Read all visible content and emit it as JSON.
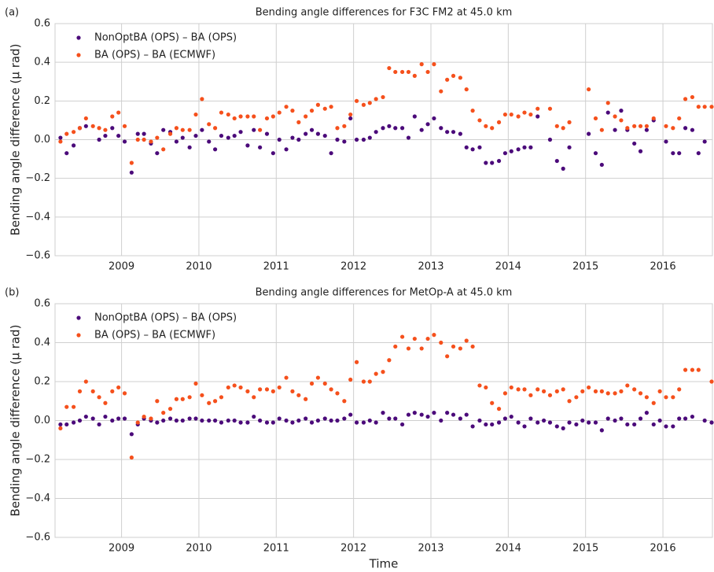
{
  "chart_data": [
    {
      "type": "scatter",
      "panel": "(a)",
      "title": "Bending angle differences for F3C FM2 at 45.0 km",
      "ylabel": "Bending angle difference (μ rad)",
      "x": [
        2008.21,
        2008.29,
        2008.38,
        2008.46,
        2008.54,
        2008.63,
        2008.71,
        2008.79,
        2008.88,
        2008.96,
        2009.04,
        2009.13,
        2009.21,
        2009.29,
        2009.38,
        2009.46,
        2009.54,
        2009.63,
        2009.71,
        2009.79,
        2009.88,
        2009.96,
        2010.04,
        2010.13,
        2010.21,
        2010.29,
        2010.38,
        2010.46,
        2010.54,
        2010.63,
        2010.71,
        2010.79,
        2010.88,
        2010.96,
        2011.04,
        2011.13,
        2011.21,
        2011.29,
        2011.38,
        2011.46,
        2011.54,
        2011.63,
        2011.71,
        2011.79,
        2011.88,
        2011.96,
        2012.04,
        2012.13,
        2012.21,
        2012.29,
        2012.38,
        2012.46,
        2012.54,
        2012.63,
        2012.71,
        2012.79,
        2012.88,
        2012.96,
        2013.04,
        2013.13,
        2013.21,
        2013.29,
        2013.38,
        2013.46,
        2013.54,
        2013.63,
        2013.71,
        2013.79,
        2013.88,
        2013.96,
        2014.04,
        2014.13,
        2014.21,
        2014.29,
        2014.38,
        2014.46,
        2014.54,
        2014.63,
        2014.71,
        2014.79,
        2014.88,
        2014.96,
        2015.04,
        2015.13,
        2015.21,
        2015.29,
        2015.38,
        2015.46,
        2015.54,
        2015.63,
        2015.71,
        2015.79,
        2015.88,
        2015.96,
        2016.04,
        2016.13,
        2016.21,
        2016.29,
        2016.38,
        2016.46,
        2016.54,
        2016.63
      ],
      "series": [
        {
          "name": "NonOptBA (OPS) – BA (OPS)",
          "color": "#4b0a7a",
          "values": [
            0.01,
            -0.07,
            -0.03,
            0.06,
            0.07,
            null,
            0.0,
            0.02,
            0.06,
            0.02,
            -0.01,
            -0.17,
            0.03,
            0.03,
            -0.02,
            -0.07,
            0.05,
            0.04,
            -0.01,
            0.01,
            -0.04,
            0.02,
            0.05,
            -0.01,
            -0.05,
            0.02,
            0.01,
            0.02,
            0.04,
            -0.03,
            0.05,
            -0.04,
            0.03,
            -0.07,
            0.0,
            -0.05,
            0.01,
            0.0,
            0.03,
            0.05,
            0.03,
            0.02,
            -0.07,
            0.0,
            -0.01,
            0.11,
            0.0,
            0.0,
            0.01,
            0.04,
            0.06,
            0.07,
            0.06,
            0.06,
            0.01,
            0.12,
            0.05,
            0.08,
            0.11,
            0.06,
            0.04,
            0.04,
            0.03,
            -0.04,
            -0.05,
            -0.04,
            -0.12,
            -0.12,
            -0.11,
            -0.07,
            -0.06,
            -0.05,
            -0.04,
            -0.04,
            0.12,
            null,
            0.0,
            -0.11,
            -0.15,
            -0.04,
            null,
            null,
            0.03,
            -0.07,
            -0.13,
            0.14,
            0.05,
            0.15,
            0.05,
            -0.02,
            -0.06,
            0.05,
            0.1,
            null,
            -0.01,
            -0.07,
            -0.07,
            0.06,
            0.05,
            -0.07,
            -0.01,
            null
          ]
        },
        {
          "name": "BA (OPS) – BA (ECMWF)",
          "color": "#f5501c",
          "values": [
            -0.01,
            0.03,
            0.04,
            0.06,
            0.11,
            0.07,
            0.06,
            0.05,
            0.12,
            0.14,
            0.07,
            -0.12,
            0.0,
            0.0,
            -0.01,
            0.01,
            -0.05,
            0.03,
            0.06,
            0.05,
            0.05,
            0.13,
            0.21,
            0.08,
            0.06,
            0.14,
            0.13,
            0.11,
            0.12,
            0.12,
            0.12,
            0.05,
            0.11,
            0.12,
            0.14,
            0.17,
            0.15,
            0.09,
            0.12,
            0.15,
            0.18,
            0.16,
            0.17,
            0.06,
            0.07,
            0.13,
            0.2,
            0.18,
            0.19,
            0.21,
            0.22,
            0.37,
            0.35,
            0.35,
            0.35,
            0.33,
            0.39,
            0.35,
            0.39,
            0.25,
            0.31,
            0.33,
            0.32,
            0.26,
            0.15,
            0.1,
            0.07,
            0.06,
            0.09,
            0.13,
            0.13,
            0.12,
            0.14,
            0.13,
            0.16,
            null,
            0.16,
            0.07,
            0.06,
            0.09,
            null,
            null,
            0.26,
            0.11,
            0.05,
            0.19,
            0.12,
            0.1,
            0.06,
            0.07,
            0.07,
            0.07,
            0.11,
            null,
            0.07,
            0.06,
            0.11,
            0.21,
            0.22,
            0.17,
            0.17,
            0.17
          ]
        }
      ],
      "xlim": [
        2008.14,
        2016.64
      ],
      "xticks": [
        2009,
        2010,
        2011,
        2012,
        2013,
        2014,
        2015,
        2016
      ],
      "ylim": [
        -0.6,
        0.6
      ],
      "yticks": [
        {
          "value": -0.6,
          "label": "−0.6"
        },
        {
          "value": -0.4,
          "label": "−0.4"
        },
        {
          "value": -0.2,
          "label": "−0.2"
        },
        {
          "value": 0,
          "label": "0.0"
        },
        0.2,
        0.4,
        0.6
      ],
      "grid": true,
      "legend": "upper left"
    },
    {
      "type": "scatter",
      "panel": "(b)",
      "title": "Bending angle differences for MetOp-A at 45.0 km",
      "ylabel": "Bending angle difference (μ rad)",
      "xlabel": "Time",
      "x": [
        2008.21,
        2008.29,
        2008.38,
        2008.46,
        2008.54,
        2008.63,
        2008.71,
        2008.79,
        2008.88,
        2008.96,
        2009.04,
        2009.13,
        2009.21,
        2009.29,
        2009.38,
        2009.46,
        2009.54,
        2009.63,
        2009.71,
        2009.79,
        2009.88,
        2009.96,
        2010.04,
        2010.13,
        2010.21,
        2010.29,
        2010.38,
        2010.46,
        2010.54,
        2010.63,
        2010.71,
        2010.79,
        2010.88,
        2010.96,
        2011.04,
        2011.13,
        2011.21,
        2011.29,
        2011.38,
        2011.46,
        2011.54,
        2011.63,
        2011.71,
        2011.79,
        2011.88,
        2011.96,
        2012.04,
        2012.13,
        2012.21,
        2012.29,
        2012.38,
        2012.46,
        2012.54,
        2012.63,
        2012.71,
        2012.79,
        2012.88,
        2012.96,
        2013.04,
        2013.13,
        2013.21,
        2013.29,
        2013.38,
        2013.46,
        2013.54,
        2013.63,
        2013.71,
        2013.79,
        2013.88,
        2013.96,
        2014.04,
        2014.13,
        2014.21,
        2014.29,
        2014.38,
        2014.46,
        2014.54,
        2014.63,
        2014.71,
        2014.79,
        2014.88,
        2014.96,
        2015.04,
        2015.13,
        2015.21,
        2015.29,
        2015.38,
        2015.46,
        2015.54,
        2015.63,
        2015.71,
        2015.79,
        2015.88,
        2015.96,
        2016.04,
        2016.13,
        2016.21,
        2016.29,
        2016.38,
        2016.46,
        2016.54,
        2016.63
      ],
      "series": [
        {
          "name": "NonOptBA (OPS) – BA (OPS)",
          "color": "#4b0a7a",
          "values": [
            -0.02,
            -0.02,
            -0.01,
            0.0,
            0.02,
            0.01,
            -0.02,
            0.02,
            0.0,
            0.01,
            0.01,
            -0.07,
            -0.02,
            0.01,
            0.0,
            -0.01,
            0.0,
            0.01,
            0.0,
            0.0,
            0.01,
            0.01,
            0.0,
            0.0,
            0.0,
            -0.01,
            0.0,
            0.0,
            -0.01,
            -0.01,
            0.02,
            0.0,
            -0.01,
            -0.01,
            0.01,
            0.0,
            -0.01,
            0.0,
            0.01,
            -0.01,
            0.0,
            0.01,
            0.0,
            0.0,
            0.01,
            0.03,
            -0.01,
            -0.01,
            0.0,
            -0.01,
            0.04,
            0.01,
            0.01,
            -0.02,
            0.03,
            0.04,
            0.03,
            0.02,
            0.04,
            0.0,
            0.04,
            0.03,
            0.01,
            0.03,
            -0.03,
            0.0,
            -0.02,
            -0.02,
            -0.01,
            0.01,
            0.02,
            -0.01,
            -0.03,
            0.01,
            -0.01,
            0.0,
            -0.01,
            -0.03,
            -0.04,
            -0.01,
            -0.02,
            0.0,
            -0.01,
            -0.01,
            -0.05,
            0.01,
            0.0,
            0.01,
            -0.02,
            -0.02,
            0.01,
            0.04,
            -0.02,
            0.0,
            -0.03,
            -0.03,
            0.01,
            0.01,
            0.02,
            null,
            0.0,
            -0.01
          ]
        },
        {
          "name": "BA (OPS) – BA (ECMWF)",
          "color": "#f5501c",
          "values": [
            -0.04,
            0.07,
            0.07,
            0.15,
            0.2,
            0.15,
            0.12,
            0.09,
            0.15,
            0.17,
            0.14,
            -0.19,
            -0.01,
            0.02,
            0.01,
            0.1,
            0.04,
            0.06,
            0.11,
            0.11,
            0.12,
            0.19,
            0.13,
            0.09,
            0.1,
            0.12,
            0.17,
            0.18,
            0.17,
            0.15,
            0.12,
            0.16,
            0.16,
            0.15,
            0.17,
            0.22,
            0.15,
            0.13,
            0.11,
            0.19,
            0.22,
            0.19,
            0.16,
            0.14,
            0.1,
            0.21,
            0.3,
            0.2,
            0.2,
            0.24,
            0.25,
            0.31,
            0.38,
            0.43,
            0.37,
            0.42,
            0.37,
            0.42,
            0.44,
            0.4,
            0.33,
            0.38,
            0.37,
            0.41,
            0.38,
            0.18,
            0.17,
            0.09,
            0.06,
            0.14,
            0.17,
            0.16,
            0.16,
            0.13,
            0.16,
            0.15,
            0.13,
            0.15,
            0.16,
            0.1,
            0.12,
            0.15,
            0.17,
            0.15,
            0.15,
            0.14,
            0.14,
            0.15,
            0.18,
            0.16,
            0.14,
            0.12,
            0.09,
            0.15,
            0.12,
            0.12,
            0.16,
            0.26,
            0.26,
            0.26,
            null,
            0.2
          ]
        }
      ],
      "xlim": [
        2008.14,
        2016.64
      ],
      "xticks": [
        2009,
        2010,
        2011,
        2012,
        2013,
        2014,
        2015,
        2016
      ],
      "ylim": [
        -0.6,
        0.6
      ],
      "yticks": [
        {
          "value": -0.6,
          "label": "−0.6"
        },
        {
          "value": -0.4,
          "label": "−0.4"
        },
        {
          "value": -0.2,
          "label": "−0.2"
        },
        {
          "value": 0,
          "label": "0.0"
        },
        0.2,
        0.4,
        0.6
      ],
      "grid": true,
      "legend": "upper left"
    }
  ]
}
